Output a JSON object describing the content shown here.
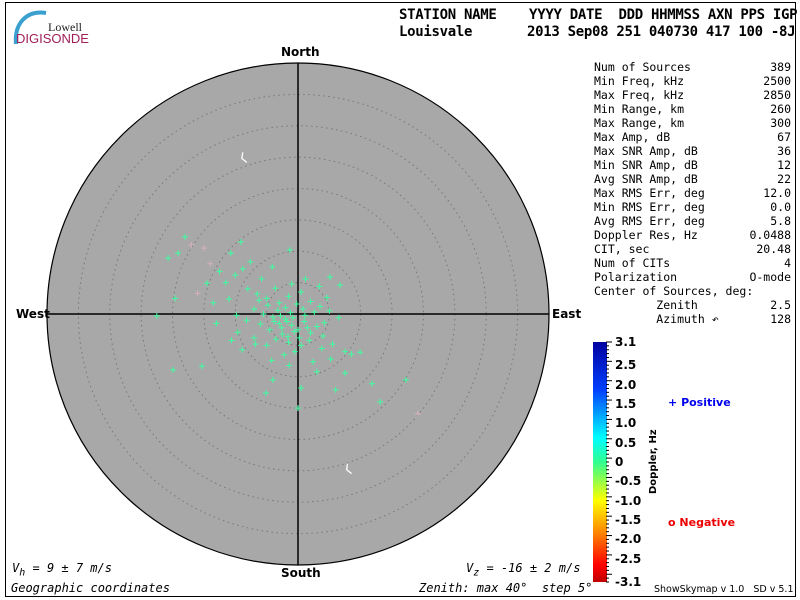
{
  "logo": {
    "top": "Lowell",
    "bottom": "DIGISONDE"
  },
  "header": {
    "line1": "STATION NAME    YYYY DATE  DDD HHMMSS AXN PPS IGP",
    "station": "Louisvale",
    "values": "2013 Sep08 251 040730 417 100 -8J"
  },
  "stats": [
    {
      "label": "Num of Sources",
      "value": "389"
    },
    {
      "label": "Min Freq, kHz",
      "value": "2500"
    },
    {
      "label": "Max Freq, kHz",
      "value": "2850"
    },
    {
      "label": "Min Range, km",
      "value": "260"
    },
    {
      "label": "Max Range, km",
      "value": "300"
    },
    {
      "label": "Max Amp, dB",
      "value": "67"
    },
    {
      "label": "Max SNR Amp, dB",
      "value": "36"
    },
    {
      "label": "Min SNR Amp, dB",
      "value": "12"
    },
    {
      "label": "Avg SNR Amp, dB",
      "value": "22"
    },
    {
      "label": "Max RMS Err, deg",
      "value": "12.0"
    },
    {
      "label": "Min RMS Err, deg",
      "value": "0.0"
    },
    {
      "label": "Avg RMS Err, deg",
      "value": "5.8"
    },
    {
      "label": "Doppler Res, Hz",
      "value": "0.0488"
    },
    {
      "label": "CIT, sec",
      "value": "20.48"
    },
    {
      "label": "Num of CITs",
      "value": "4"
    },
    {
      "label": "Polarization",
      "value": "O-mode"
    },
    {
      "label": "Center of Sources, deg:",
      "value": ""
    },
    {
      "label": "         Zenith",
      "value": "2.5"
    },
    {
      "label": "         Azimuth ↶",
      "value": "128"
    }
  ],
  "footer": {
    "vh": "= 9 ± 7 m/s",
    "vh_sym": "V",
    "vh_sub": "h",
    "vz": "= -16 ± 2 m/s",
    "vz_sym": "V",
    "vz_sub": "z",
    "coords": "Geographic coordinates",
    "zenith": "Zenith: max 40°  step 5°",
    "version": "ShowSkymap v 1.0   SD v 5.1"
  },
  "legend": {
    "positive_symbol": "+",
    "positive": "Positive",
    "negative_symbol": "o",
    "negative": "Negative",
    "positive_color": "#0000ee",
    "negative_color": "#ee0000"
  },
  "colors": {
    "plot_bg": "#a8a8a8",
    "point": "#3cffa0",
    "point_pink": "#d8b0c0"
  },
  "chart_data": {
    "type": "scatter",
    "projection": "polar skymap (east, north offsets in degrees of zenith)",
    "directions": {
      "north": "North",
      "south": "South",
      "east": "East",
      "west": "West"
    },
    "zenith_max_deg": 40,
    "ring_step_deg": 5,
    "colorbar": {
      "label": "Doppler, Hz",
      "range": [
        -3.1,
        3.1
      ],
      "ticks": [
        "3.1",
        "2.5",
        "2.0",
        "1.5",
        "1.0",
        "0.5",
        "0",
        "-0.5",
        "-1.0",
        "-1.5",
        "-2.0",
        "-2.5",
        "-3.1"
      ]
    },
    "points_east_north_doppler": [
      [
        -18,
        12.3,
        0.6
      ],
      [
        -19.1,
        9.7,
        0.6
      ],
      [
        -20.7,
        8.9,
        0.6
      ],
      [
        -19.6,
        2.5,
        0.6
      ],
      [
        -22.5,
        -0.3,
        0.7
      ],
      [
        -19.9,
        -8.9,
        0.6
      ],
      [
        -15.3,
        -8.3,
        0.6
      ],
      [
        -9.1,
        11.5,
        0.6
      ],
      [
        -10.7,
        9.7,
        0.6
      ],
      [
        -7.6,
        8.3,
        0.6
      ],
      [
        -1.3,
        10.2,
        0.6
      ],
      [
        -4.1,
        7.5,
        0.6
      ],
      [
        -10,
        6.2,
        0.6
      ],
      [
        -14.5,
        4.9,
        0.6
      ],
      [
        -13.5,
        1.8,
        0.6
      ],
      [
        5.1,
        5.9,
        0.6
      ],
      [
        6.7,
        4.6,
        0.6
      ],
      [
        9.9,
        -6.1,
        0.6
      ],
      [
        11.8,
        -11.1,
        0.6
      ],
      [
        13.1,
        -14,
        0.6
      ],
      [
        17.2,
        -10.5,
        0.6
      ],
      [
        19.1,
        -15.9,
        -0.2
      ],
      [
        0,
        -15,
        0.6
      ],
      [
        -5.1,
        -12.6,
        0.6
      ],
      [
        0.5,
        -11.8,
        0.6
      ],
      [
        6,
        -12.1,
        0.6
      ],
      [
        7.5,
        -9.4,
        0.6
      ],
      [
        3,
        -9.2,
        0.6
      ],
      [
        -4,
        -10.5,
        0.6
      ],
      [
        -9.6,
        -2.9,
        0.6
      ],
      [
        -8.9,
        -5.7,
        0.6
      ],
      [
        -17,
        11,
        -0.2
      ],
      [
        -14,
        8,
        -0.2
      ],
      [
        -12.5,
        6.8,
        0.6
      ],
      [
        -11.5,
        5,
        0.6
      ],
      [
        -8,
        4,
        0.6
      ],
      [
        -6.5,
        3.2,
        0.6
      ],
      [
        -5,
        2.5,
        0.6
      ],
      [
        -3,
        1.8,
        0.6
      ],
      [
        -1.5,
        2.8,
        0.6
      ],
      [
        0.5,
        3.5,
        0.6
      ],
      [
        2,
        2,
        0.6
      ],
      [
        3.5,
        1.2,
        0.6
      ],
      [
        5,
        0.5,
        0.6
      ],
      [
        6.5,
        -0.6,
        0.6
      ],
      [
        -7,
        0.8,
        0.6
      ],
      [
        -5.5,
        0,
        0.6
      ],
      [
        -4,
        -0.5,
        0.6
      ],
      [
        -3,
        -1.5,
        0.6
      ],
      [
        -2,
        -0.8,
        0.6
      ],
      [
        -1,
        -1.8,
        0.6
      ],
      [
        0,
        -2.5,
        0.6
      ],
      [
        1,
        -1.2,
        0.6
      ],
      [
        2,
        -3,
        0.6
      ],
      [
        3,
        -2,
        0.6
      ],
      [
        4,
        -3.5,
        0.6
      ],
      [
        -2.5,
        -3.2,
        0.6
      ],
      [
        -4.5,
        -2.5,
        0.6
      ],
      [
        -6,
        -1.6,
        0.6
      ],
      [
        -3.5,
        -4,
        0.6
      ],
      [
        -1.5,
        -4.5,
        0.6
      ],
      [
        0.5,
        -5,
        0.6
      ],
      [
        1.8,
        -4.2,
        0.6
      ],
      [
        -0.5,
        -6,
        0.6
      ],
      [
        -2.2,
        -6.5,
        0.6
      ],
      [
        3.8,
        -5.5,
        0.6
      ],
      [
        5.5,
        -4.8,
        0.6
      ],
      [
        7.5,
        -6,
        0.6
      ],
      [
        8.5,
        -6.4,
        0.6
      ],
      [
        -5,
        -5,
        0.6
      ],
      [
        -7,
        -3.8,
        0.6
      ],
      [
        -8.2,
        -1,
        0.6
      ],
      [
        -3.2,
        0.6,
        0.6
      ],
      [
        -1.2,
        0.2,
        0.6
      ],
      [
        0.8,
        0.8,
        0.6
      ],
      [
        -2.6,
        -2.2,
        0.6
      ],
      [
        -1.8,
        -1.2,
        0.6
      ],
      [
        -0.6,
        -2.8,
        0.6
      ],
      [
        -3.8,
        -1.2,
        0.6
      ],
      [
        1.5,
        -2.2,
        0.6
      ],
      [
        -2,
        1,
        0.6
      ],
      [
        -4.8,
        1.4,
        0.6
      ],
      [
        -6.2,
        2.2,
        0.6
      ],
      [
        2.6,
        0.3,
        0.6
      ],
      [
        4.2,
        -1.4,
        0.6
      ],
      [
        -1,
        4.8,
        0.6
      ],
      [
        1.2,
        5.6,
        0.6
      ],
      [
        3.4,
        4.4,
        0.6
      ],
      [
        -3.6,
        4.1,
        0.6
      ],
      [
        -5.8,
        5.6,
        0.6
      ],
      [
        -8.8,
        7.2,
        0.6
      ],
      [
        -11,
        2.4,
        0.6
      ],
      [
        -9.8,
        -0.2,
        0.6
      ],
      [
        -6.8,
        -4.8,
        0.6
      ],
      [
        -4.2,
        -7.4,
        0.6
      ],
      [
        -1.4,
        -8.2,
        0.6
      ],
      [
        2.4,
        -7.6,
        0.6
      ],
      [
        5.2,
        -7.2,
        0.6
      ],
      [
        -10.6,
        -4.2,
        0.6
      ],
      [
        -16,
        3.3,
        -0.2
      ],
      [
        -15,
        10.5,
        -0.2
      ],
      [
        -13,
        -1.5,
        0.6
      ],
      [
        4.6,
        2.6,
        0.6
      ],
      [
        -0.2,
        1.6,
        0.6
      ],
      [
        -2.8,
        -0.3,
        0.6
      ],
      [
        -0.8,
        -0.6,
        0.6
      ],
      [
        -1.6,
        -3.6,
        0.6
      ],
      [
        0.2,
        -3.8,
        0.6
      ],
      [
        1.1,
        -0.2,
        0.6
      ]
    ],
    "markers": [
      [
        -8.8,
        24.8
      ],
      [
        7.9,
        -24.8
      ]
    ]
  }
}
